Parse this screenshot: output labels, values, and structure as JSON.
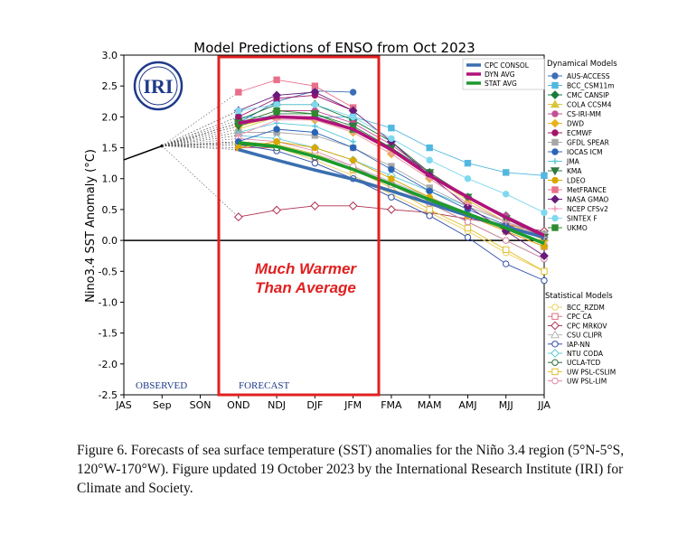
{
  "caption": "Figure 6. Forecasts of sea surface temperature (SST) anomalies for the Niño 3.4 region (5°N-5°S, 120°W-170°W). Figure updated 19 October 2023 by the International Research Institute (IRI) for Climate and Society.",
  "logo_text": "IRI",
  "chart_data": {
    "type": "line",
    "title": "Model Predictions of ENSO from Oct 2023",
    "ylabel": "Nino3.4 SST Anomaly (°C)",
    "xlabel": "",
    "categories": [
      "JAS",
      "Sep",
      "SON",
      "OND",
      "NDJ",
      "DJF",
      "JFM",
      "FMA",
      "MAM",
      "AMJ",
      "MJJ",
      "JJA"
    ],
    "ylim": [
      -2.5,
      3.0
    ],
    "yticks": [
      "3.0",
      "2.5",
      "2.0",
      "1.5",
      "1.0",
      "0.5",
      "0.0",
      "-0.5",
      "-1.0",
      "-1.5",
      "-2.0",
      "-2.5"
    ],
    "observed_label": "OBSERVED",
    "forecast_label": "FORECAST",
    "annotation": "Much Warmer Than Average",
    "annotation_lines": [
      "Much Warmer",
      "Than Average"
    ],
    "observed": [
      1.3,
      1.53
    ],
    "averages_legend": [
      {
        "name": "CPC CONSOL",
        "color": "#3a6fb0"
      },
      {
        "name": "DYN AVG",
        "color": "#b0127a"
      },
      {
        "name": "STAT AVG",
        "color": "#1c9a2c"
      }
    ],
    "dynamical_heading": "Dynamical Models",
    "statistical_heading": "Statistical Models",
    "averages": [
      {
        "name": "CPC CONSOL",
        "color": "#3a6fb0",
        "values": [
          1.47,
          1.3,
          1.14,
          0.99,
          0.8,
          0.6,
          0.4,
          0.22,
          0.05
        ]
      },
      {
        "name": "DYN AVG",
        "color": "#b0127a",
        "values": [
          1.9,
          2.0,
          1.98,
          1.8,
          1.47,
          1.05,
          0.7,
          0.37,
          0.08
        ]
      },
      {
        "name": "STAT AVG",
        "color": "#1c9a2c",
        "values": [
          1.58,
          1.52,
          1.36,
          1.15,
          0.91,
          0.66,
          0.43,
          0.2,
          -0.05
        ]
      }
    ],
    "dynamical": [
      {
        "name": "AUS-ACCESS",
        "color": "#3d6fb6",
        "values": [
          1.9,
          2.25,
          2.42,
          2.4
        ]
      },
      {
        "name": "BCC_CSM11m",
        "color": "#52b8e0",
        "values": [
          2.0,
          2.0,
          2.0,
          2.0,
          1.82,
          1.5,
          1.25,
          1.1,
          1.05
        ]
      },
      {
        "name": "CMC CANSIP",
        "color": "#1a7a3c",
        "values": [
          1.95,
          2.2,
          2.2,
          1.95,
          1.6,
          1.1,
          0.7,
          0.4,
          0.1
        ]
      },
      {
        "name": "COLA CCSM4",
        "color": "#d8c63a",
        "values": [
          1.8,
          2.0,
          2.0,
          1.8,
          1.5,
          1.05,
          0.65,
          0.3,
          0.05
        ]
      },
      {
        "name": "CS-IRI-MM",
        "color": "#c05098",
        "values": [
          1.9,
          2.1,
          2.1,
          1.9,
          1.55,
          1.1,
          0.7,
          0.4,
          0.1
        ]
      },
      {
        "name": "DWD",
        "color": "#e6b41e",
        "values": [
          1.85,
          2.0,
          1.95,
          1.75,
          1.4,
          1.0,
          0.6,
          0.3,
          0.0
        ]
      },
      {
        "name": "ECMWF",
        "color": "#a01468",
        "values": [
          2.0,
          2.3,
          2.35,
          2.1
        ]
      },
      {
        "name": "GFDL SPEAR",
        "color": "#a8a8a8",
        "values": [
          1.75,
          1.75,
          1.7,
          1.5,
          1.2,
          0.85,
          0.55,
          0.3,
          0.1
        ]
      },
      {
        "name": "IOCAS ICM",
        "color": "#2a64b8",
        "values": [
          1.6,
          1.8,
          1.75,
          1.5,
          1.15,
          0.8,
          0.5,
          0.25,
          0.05
        ]
      },
      {
        "name": "JMA",
        "color": "#5ac8d8",
        "values": [
          1.75,
          1.9,
          1.85,
          1.6
        ]
      },
      {
        "name": "KMA",
        "color": "#2f7a3f",
        "values": [
          1.85,
          2.05,
          2.05,
          1.85,
          1.5,
          1.1,
          0.7,
          0.35,
          0.05
        ]
      },
      {
        "name": "LDEO",
        "color": "#d8a800",
        "values": [
          1.5,
          1.6,
          1.5,
          1.3,
          1.0,
          0.7,
          0.4,
          0.15,
          -0.1
        ]
      },
      {
        "name": "MetFRANCE",
        "color": "#e8708a",
        "values": [
          2.4,
          2.6,
          2.5,
          2.15
        ]
      },
      {
        "name": "NASA GMAO",
        "color": "#6a1a7a",
        "values": [
          2.1,
          2.35,
          2.4,
          2.1,
          1.6,
          1.05,
          0.55,
          0.15,
          -0.25
        ]
      },
      {
        "name": "NCEP CFSv2",
        "color": "#f09ab8",
        "values": [
          1.7,
          1.95,
          1.95,
          1.75,
          1.4,
          1.0,
          0.6,
          0.3,
          0.05
        ]
      },
      {
        "name": "SINTEX F",
        "color": "#7fd8f0",
        "values": [
          2.1,
          2.2,
          2.2,
          2.0,
          1.65,
          1.3,
          1.0,
          0.75,
          0.45
        ]
      },
      {
        "name": "UKMO",
        "color": "#2e8a2e",
        "values": [
          1.9,
          2.1,
          2.05,
          1.8
        ]
      }
    ],
    "statistical": [
      {
        "name": "BCC_RZDM",
        "color": "#f0d060",
        "values": [
          1.55,
          1.5,
          1.3,
          1.05,
          0.75,
          0.45,
          0.15,
          -0.2,
          -0.5
        ]
      },
      {
        "name": "CPC CA",
        "color": "#e07080",
        "values": [
          1.5,
          1.5,
          1.35,
          1.15,
          0.9,
          0.65,
          0.4,
          0.15,
          -0.1
        ]
      },
      {
        "name": "CPC MRKOV",
        "color": "#b03050",
        "values": [
          0.38,
          0.49,
          0.56,
          0.56,
          0.5,
          0.45,
          0.35,
          0.25,
          0.15
        ]
      },
      {
        "name": "CSU CLIPR",
        "color": "#b8b8b8",
        "values": [
          1.6,
          1.55,
          1.4,
          1.2,
          0.95,
          0.7,
          0.45,
          0.2,
          -0.05
        ]
      },
      {
        "name": "IAP-NN",
        "color": "#3050a8",
        "values": [
          1.55,
          1.45,
          1.25,
          1.0,
          0.7,
          0.4,
          0.05,
          -0.38,
          -0.65
        ]
      },
      {
        "name": "NTU CODA",
        "color": "#60c8d8",
        "values": [
          1.7,
          1.65,
          1.5,
          1.3,
          1.05,
          0.8,
          0.55,
          0.3,
          0.05
        ]
      },
      {
        "name": "UCLA-TCD",
        "color": "#2a6a3a",
        "values": [
          1.55,
          1.5,
          1.35,
          1.15,
          0.9,
          0.6,
          0.3,
          0.0,
          -0.3
        ]
      },
      {
        "name": "UW PSL-CSLIM",
        "color": "#e0c030",
        "values": [
          1.6,
          1.55,
          1.4,
          1.15,
          0.85,
          0.5,
          0.2,
          -0.15,
          -0.5
        ]
      },
      {
        "name": "UW PSL-LIM",
        "color": "#e088a8",
        "values": [
          1.65,
          1.6,
          1.45,
          1.2,
          0.9,
          0.6,
          0.3,
          0.0,
          -0.3
        ]
      }
    ]
  }
}
